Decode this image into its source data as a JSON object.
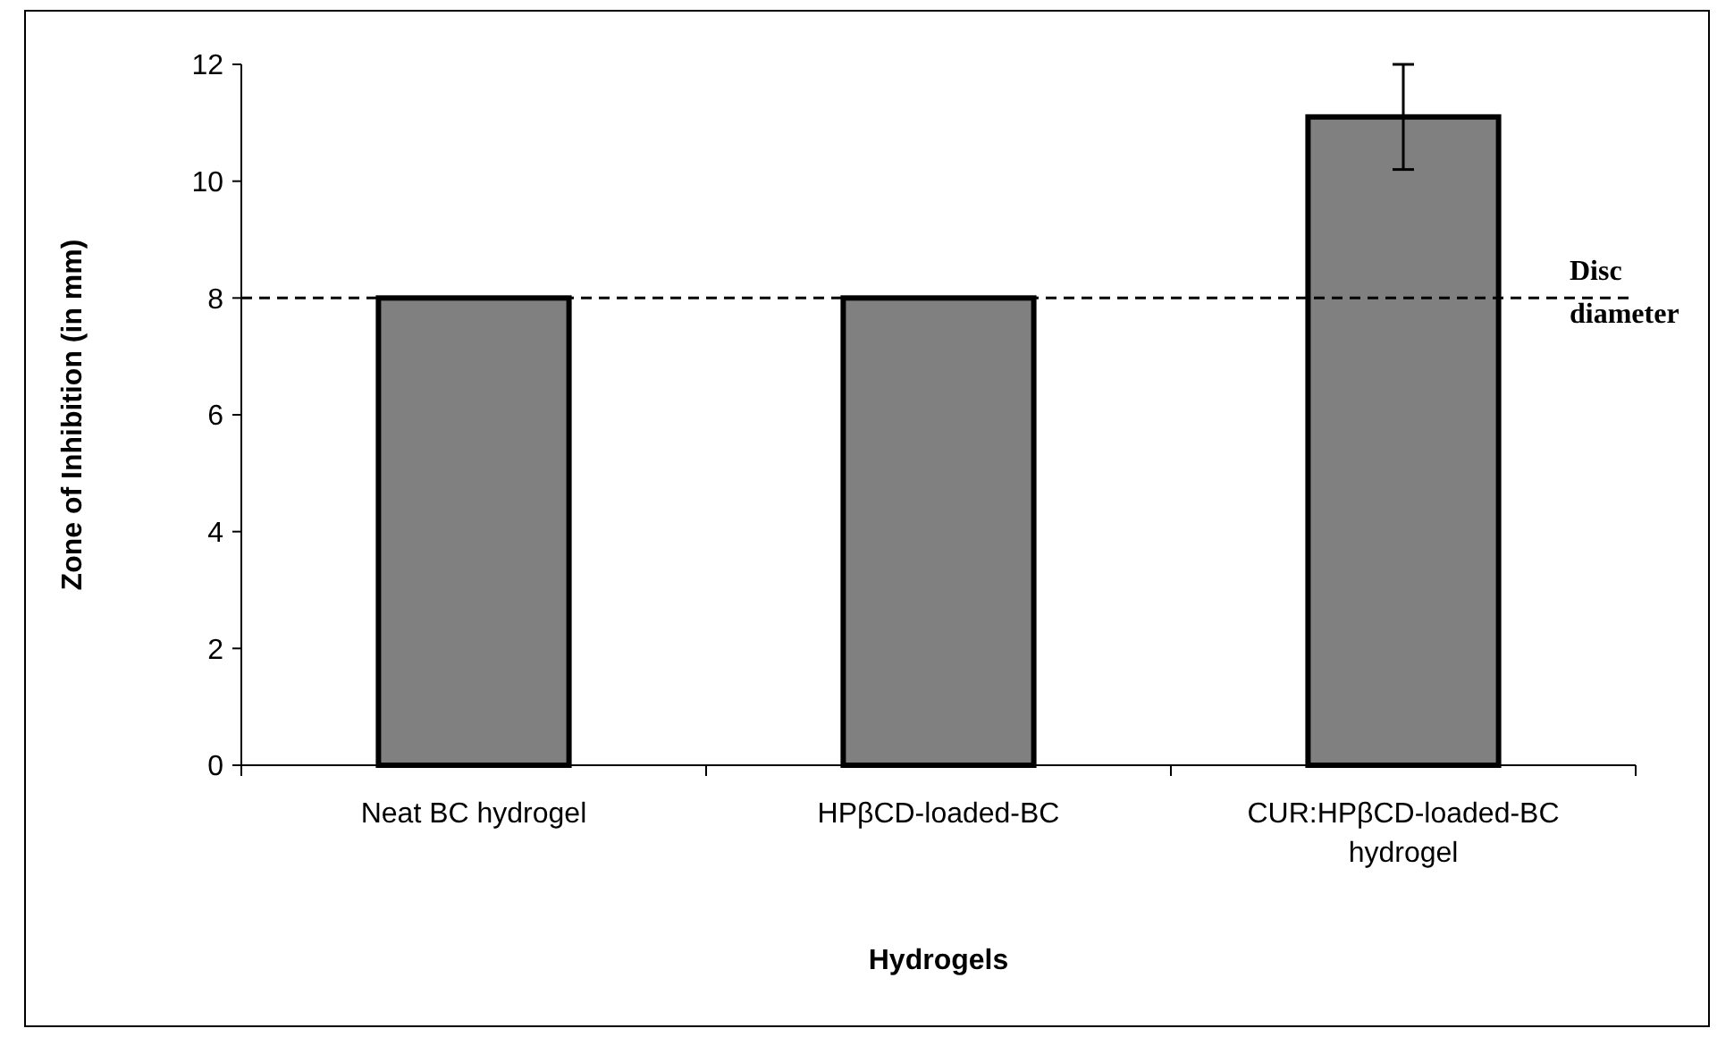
{
  "chart_data": {
    "type": "bar",
    "xlabel": "Hydrogels",
    "ylabel": "Zone of Inhibition (in mm)",
    "categories": [
      "Neat BC hydrogel",
      "HPβCD-loaded-BC",
      "CUR:HPβCD-loaded-BC hydrogel"
    ],
    "values": [
      8,
      8,
      11.1
    ],
    "color": "#808080",
    "errors": [
      null,
      null,
      [
        10.2,
        12.0
      ]
    ],
    "ylim": [
      0,
      12
    ],
    "yticks": [
      0,
      2,
      4,
      6,
      8,
      10,
      12
    ],
    "grid": false,
    "ref_lines": [
      {
        "axis": "y",
        "value": 8,
        "label": "Disc diameter",
        "color": "#000000",
        "line_style": "dashed"
      }
    ]
  }
}
